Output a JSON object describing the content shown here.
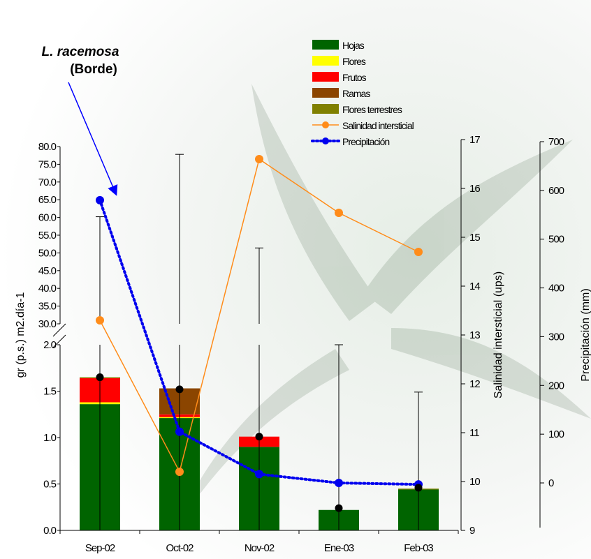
{
  "annotation": {
    "title": "L. racemosa",
    "subtitle": "(Borde)",
    "arrow_color": "#0000ff"
  },
  "chart_data": {
    "type": "bar",
    "categories": [
      "Sep-02",
      "Oct-02",
      "Nov-02",
      "Ene-03",
      "Feb-03"
    ],
    "stacked": true,
    "series": [
      {
        "name": "Hojas",
        "color": "#006400",
        "values": [
          1.36,
          1.21,
          0.9,
          0.22,
          0.44
        ]
      },
      {
        "name": "Flores",
        "color": "#ffff00",
        "values": [
          0.02,
          0.01,
          0.0,
          0.0,
          0.0
        ]
      },
      {
        "name": "Frutos",
        "color": "#ff0000",
        "values": [
          0.26,
          0.03,
          0.11,
          0.0,
          0.0
        ]
      },
      {
        "name": "Ramas",
        "color": "#8b4500",
        "values": [
          0.0,
          0.28,
          0.0,
          0.0,
          0.0
        ]
      },
      {
        "name": "Flores terrestres",
        "color": "#808000",
        "values": [
          0.01,
          0.0,
          0.0,
          0.0,
          0.01
        ]
      }
    ],
    "mean_markers": [
      1.65,
      1.52,
      1.01,
      0.24,
      0.46
    ],
    "error_upper": [
      60.2,
      77.8,
      51.4,
      2.0,
      1.49
    ],
    "ylabel": "gr (p.s.) m2.día-1",
    "y_axis_lower": {
      "range": [
        0,
        2.0
      ],
      "ticks": [
        "0.0",
        "0.5",
        "1.0",
        "1.5",
        "2.0"
      ]
    },
    "y_axis_upper": {
      "range": [
        30,
        80
      ],
      "ticks": [
        "30.0",
        "35.0",
        "40.0",
        "45.0",
        "50.0",
        "55.0",
        "60.0",
        "65.0",
        "70.0",
        "75.0",
        "80.0"
      ]
    },
    "lines": [
      {
        "name": "Salinidad intersticial",
        "color": "#ff8c1a",
        "axis": "salinity",
        "values": [
          13.3,
          10.2,
          16.6,
          15.5,
          14.7
        ]
      },
      {
        "name": "Precipitación",
        "color": "#0000ee",
        "axis": "precip",
        "style": "dotted",
        "values": [
          580,
          105,
          18,
          0,
          -3
        ]
      }
    ],
    "salinity_axis": {
      "label": "Salinidad intersticial (ups)",
      "range": [
        9,
        17
      ],
      "ticks": [
        "9",
        "10",
        "11",
        "12",
        "13",
        "14",
        "15",
        "16",
        "17"
      ]
    },
    "precip_axis": {
      "label": "Precipitación (mm)",
      "range": [
        0,
        700
      ],
      "ticks": [
        "0",
        "100",
        "200",
        "300",
        "400",
        "500",
        "600",
        "700"
      ]
    },
    "legend_placement": "top-center",
    "grid": false
  }
}
